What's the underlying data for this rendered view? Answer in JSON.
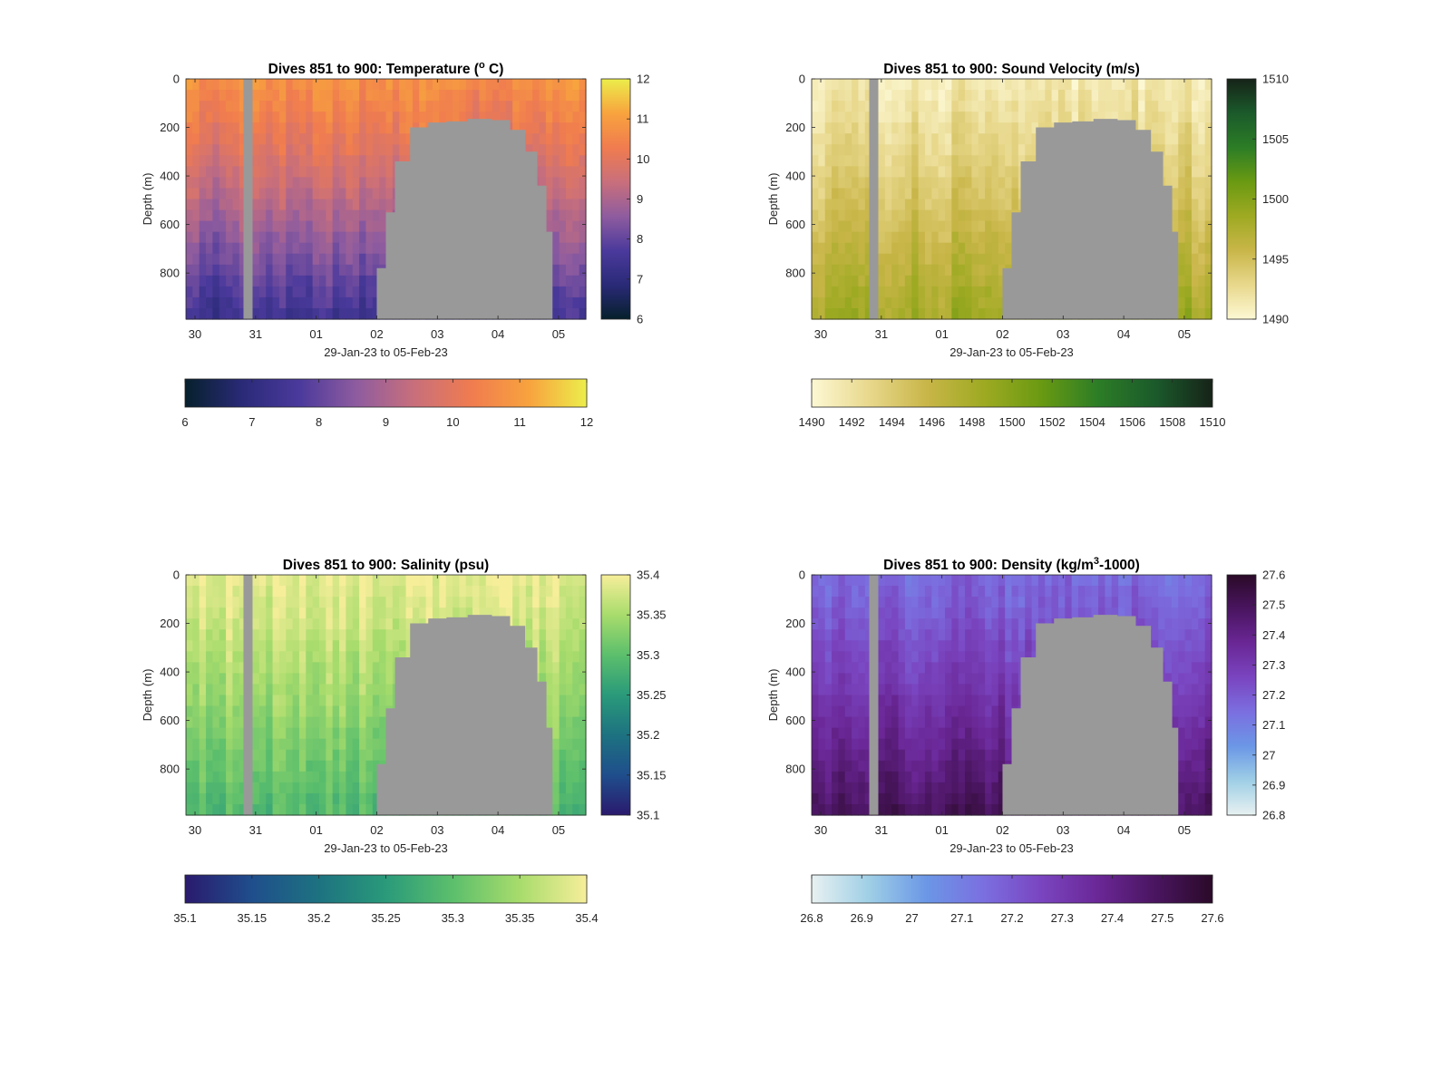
{
  "chart_data": [
    {
      "type": "heatmap",
      "title": "Dives 851 to 900: Temperature (° C)",
      "title_parts": {
        "pre": "Dives 851 to 900: Temperature (",
        "sup": "o",
        "post": " C)"
      },
      "xlabel": "29-Jan-23 to 05-Feb-23",
      "ylabel": "Depth (m)",
      "x_ticks": [
        "30",
        "31",
        "01",
        "02",
        "03",
        "04",
        "05"
      ],
      "x_tick_values": [
        30,
        31,
        32,
        33,
        34,
        35,
        36
      ],
      "xlim": [
        29.85,
        36.45
      ],
      "y_ticks": [
        "0",
        "200",
        "400",
        "600",
        "800"
      ],
      "y_tick_values": [
        0,
        200,
        400,
        600,
        800
      ],
      "ylim": [
        0,
        990
      ],
      "colormap": [
        "#06202c",
        "#2a2a78",
        "#4b3a9c",
        "#8f5c9f",
        "#c96f7b",
        "#f07c4f",
        "#f8a33e",
        "#ecee4b"
      ],
      "surface_value": 10.7,
      "deep_value": 7.3,
      "colorbar_vertical": {
        "min": 6,
        "max": 12,
        "ticks": [
          "6",
          "7",
          "8",
          "9",
          "10",
          "11",
          "12"
        ],
        "tick_values": [
          6,
          7,
          8,
          9,
          10,
          11,
          12
        ]
      },
      "colorbar_horizontal": {
        "min": 6,
        "max": 12,
        "ticks": [
          "6",
          "7",
          "8",
          "9",
          "10",
          "11",
          "12"
        ],
        "tick_values": [
          6,
          7,
          8,
          9,
          10,
          11,
          12
        ]
      }
    },
    {
      "type": "heatmap",
      "title": "Dives 851 to 900: Sound Velocity (m/s)",
      "xlabel": "29-Jan-23 to 05-Feb-23",
      "ylabel": "Depth (m)",
      "x_ticks": [
        "30",
        "31",
        "01",
        "02",
        "03",
        "04",
        "05"
      ],
      "x_tick_values": [
        30,
        31,
        32,
        33,
        34,
        35,
        36
      ],
      "xlim": [
        29.85,
        36.45
      ],
      "y_ticks": [
        "0",
        "200",
        "400",
        "600",
        "800"
      ],
      "y_tick_values": [
        0,
        200,
        400,
        600,
        800
      ],
      "ylim": [
        0,
        990
      ],
      "colormap": [
        "#fdf8d4",
        "#e8d88c",
        "#c9b649",
        "#9eaa22",
        "#6a9a12",
        "#2c7d26",
        "#1b5a2b",
        "#162318"
      ],
      "surface_value": 1491.5,
      "deep_value": 1498.5,
      "colorbar_vertical": {
        "min": 1490,
        "max": 1510,
        "ticks": [
          "1490",
          "1495",
          "1500",
          "1505",
          "1510"
        ],
        "tick_values": [
          1490,
          1495,
          1500,
          1505,
          1510
        ]
      },
      "colorbar_horizontal": {
        "min": 1490,
        "max": 1510,
        "ticks": [
          "1490",
          "1492",
          "1494",
          "1496",
          "1498",
          "1500",
          "1502",
          "1504",
          "1506",
          "1508",
          "1510"
        ],
        "tick_values": [
          1490,
          1492,
          1494,
          1496,
          1498,
          1500,
          1502,
          1504,
          1506,
          1508,
          1510
        ]
      }
    },
    {
      "type": "heatmap",
      "title": "Dives 851 to 900: Salinity (psu)",
      "xlabel": "29-Jan-23 to 05-Feb-23",
      "ylabel": "Depth (m)",
      "x_ticks": [
        "30",
        "31",
        "01",
        "02",
        "03",
        "04",
        "05"
      ],
      "x_tick_values": [
        30,
        31,
        32,
        33,
        34,
        35,
        36
      ],
      "xlim": [
        29.85,
        36.45
      ],
      "y_ticks": [
        "0",
        "200",
        "400",
        "600",
        "800"
      ],
      "y_tick_values": [
        0,
        200,
        400,
        600,
        800
      ],
      "ylim": [
        0,
        990
      ],
      "colormap": [
        "#2a1a6e",
        "#1f4e8c",
        "#1d7280",
        "#2a9a7a",
        "#5cbf6c",
        "#a8dc6c",
        "#f7ee9a"
      ],
      "surface_value": 35.39,
      "deep_value": 35.29,
      "colorbar_vertical": {
        "min": 35.1,
        "max": 35.4,
        "ticks": [
          "35.1",
          "35.15",
          "35.2",
          "35.25",
          "35.3",
          "35.35",
          "35.4"
        ],
        "tick_values": [
          35.1,
          35.15,
          35.2,
          35.25,
          35.3,
          35.35,
          35.4
        ]
      },
      "colorbar_horizontal": {
        "min": 35.1,
        "max": 35.4,
        "ticks": [
          "35.1",
          "35.15",
          "35.2",
          "35.25",
          "35.3",
          "35.35",
          "35.4"
        ],
        "tick_values": [
          35.1,
          35.15,
          35.2,
          35.25,
          35.3,
          35.35,
          35.4
        ]
      }
    },
    {
      "type": "heatmap",
      "title": "Dives 851 to 900: Density (kg/m³-1000)",
      "title_parts": {
        "pre": "Dives 851 to 900: Density (kg/m",
        "sup": "3",
        "post": "-1000)"
      },
      "xlabel": "29-Jan-23 to 05-Feb-23",
      "ylabel": "Depth (m)",
      "x_ticks": [
        "30",
        "31",
        "01",
        "02",
        "03",
        "04",
        "05"
      ],
      "x_tick_values": [
        30,
        31,
        32,
        33,
        34,
        35,
        36
      ],
      "xlim": [
        29.85,
        36.45
      ],
      "y_ticks": [
        "0",
        "200",
        "400",
        "600",
        "800"
      ],
      "y_tick_values": [
        0,
        200,
        400,
        600,
        800
      ],
      "ylim": [
        0,
        990
      ],
      "colormap": [
        "#e8f1f1",
        "#9fcfe6",
        "#6b97e6",
        "#7b6fe0",
        "#7a45c0",
        "#6a2796",
        "#4a1560",
        "#2a0a28"
      ],
      "surface_value": 27.16,
      "deep_value": 27.5,
      "colorbar_vertical": {
        "min": 26.8,
        "max": 27.6,
        "ticks": [
          "26.8",
          "26.9",
          "27",
          "27.1",
          "27.2",
          "27.3",
          "27.4",
          "27.5",
          "27.6"
        ],
        "tick_values": [
          26.8,
          26.9,
          27.0,
          27.1,
          27.2,
          27.3,
          27.4,
          27.5,
          27.6
        ]
      },
      "colorbar_horizontal": {
        "min": 26.8,
        "max": 27.6,
        "ticks": [
          "26.8",
          "26.9",
          "27",
          "27.1",
          "27.2",
          "27.3",
          "27.4",
          "27.5",
          "27.6"
        ],
        "tick_values": [
          26.8,
          26.9,
          27.0,
          27.1,
          27.2,
          27.3,
          27.4,
          27.5,
          27.6
        ]
      }
    }
  ],
  "no_data_color": "#999999",
  "no_data_regions": {
    "gap": {
      "x": [
        30.8,
        30.95
      ],
      "depth_top": 0,
      "depth_bottom": 990
    },
    "seafloor_profile": [
      [
        33.0,
        780
      ],
      [
        33.15,
        550
      ],
      [
        33.3,
        340
      ],
      [
        33.55,
        200
      ],
      [
        33.85,
        180
      ],
      [
        34.15,
        175
      ],
      [
        34.5,
        165
      ],
      [
        34.9,
        170
      ],
      [
        35.2,
        210
      ],
      [
        35.45,
        300
      ],
      [
        35.65,
        440
      ],
      [
        35.8,
        630
      ],
      [
        35.9,
        990
      ]
    ]
  }
}
